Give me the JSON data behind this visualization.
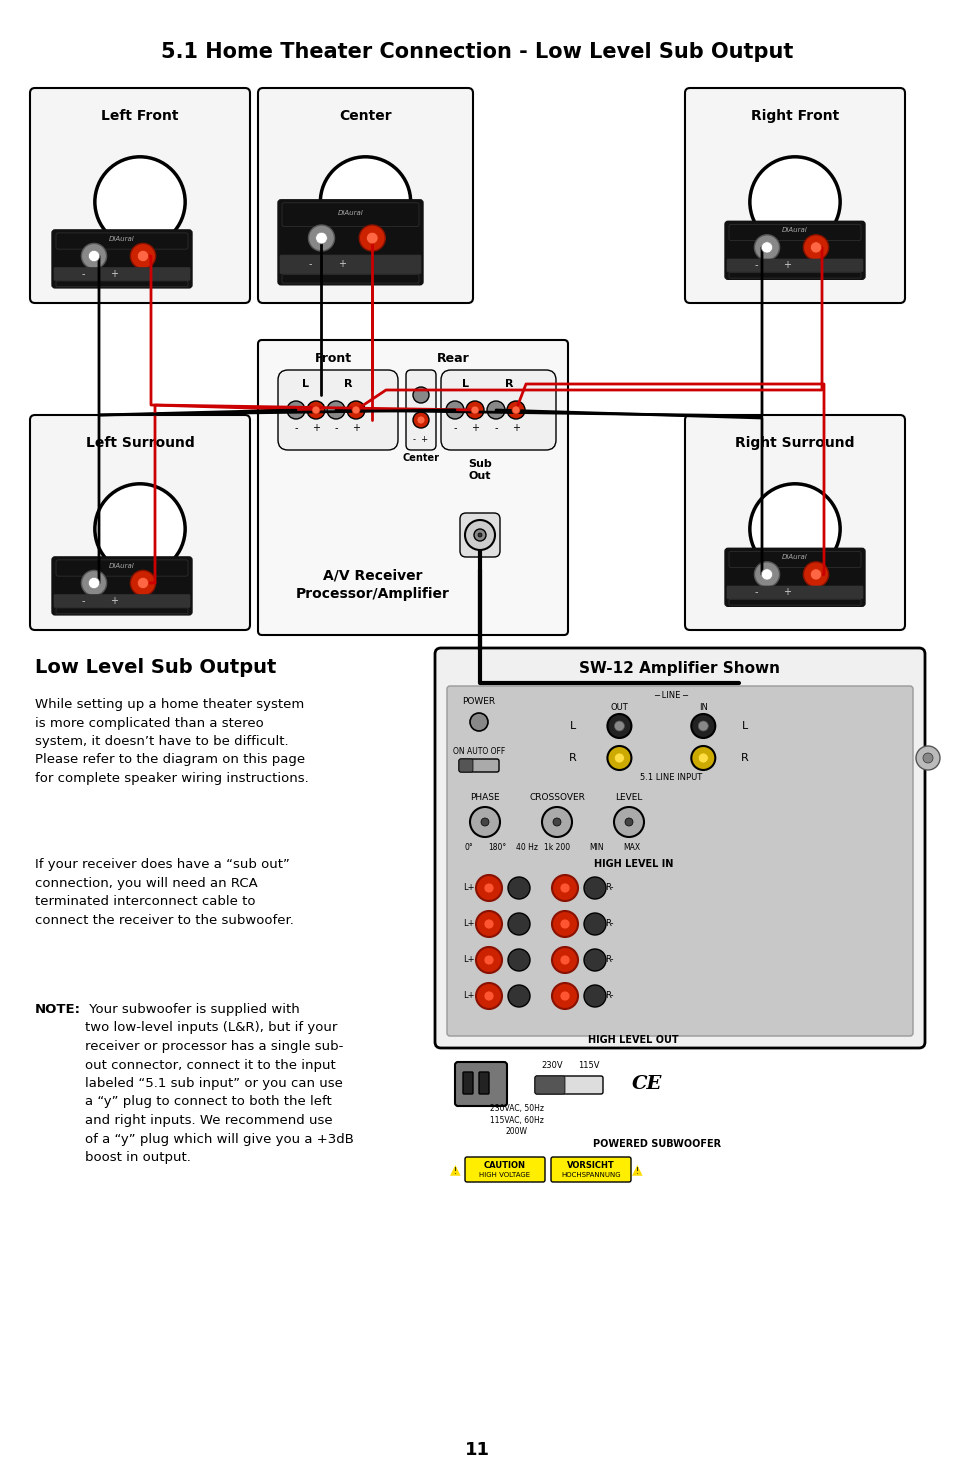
{
  "title": "5.1 Home Theater Connection - Low Level Sub Output",
  "page_number": "11",
  "bg_color": "#ffffff",
  "section_heading": "Low Level Sub Output",
  "para1": "While setting up a home theater system\nis more complicated than a stereo\nsystem, it doesn’t have to be difficult.\nPlease refer to the diagram on this page\nfor complete speaker wiring instructions.",
  "para2": "If your receiver does have a “sub out”\nconnection, you will need an RCA\nterminated interconnect cable to\nconnect the receiver to the subwoofer.",
  "para3_bold": "NOTE:",
  "para3_rest": " Your subwoofer is supplied with\ntwo low-level inputs (L&R), but if your\nreceiver or processor has a single sub-\nout connector, connect it to the input\nlabeled “5.1 sub input” or you can use\na “y” plug to connect to both the left\nand right inputs. We recommend use\nof a “y” plug which will give you a +3dB\nboost in output.",
  "amp_label": "SW-12 Amplifier Shown",
  "colors": {
    "black": "#000000",
    "red": "#cc0000",
    "white": "#ffffff",
    "light_gray": "#f0f0f0",
    "dark_gray": "#333333",
    "box_fill": "#f8f8f8"
  }
}
